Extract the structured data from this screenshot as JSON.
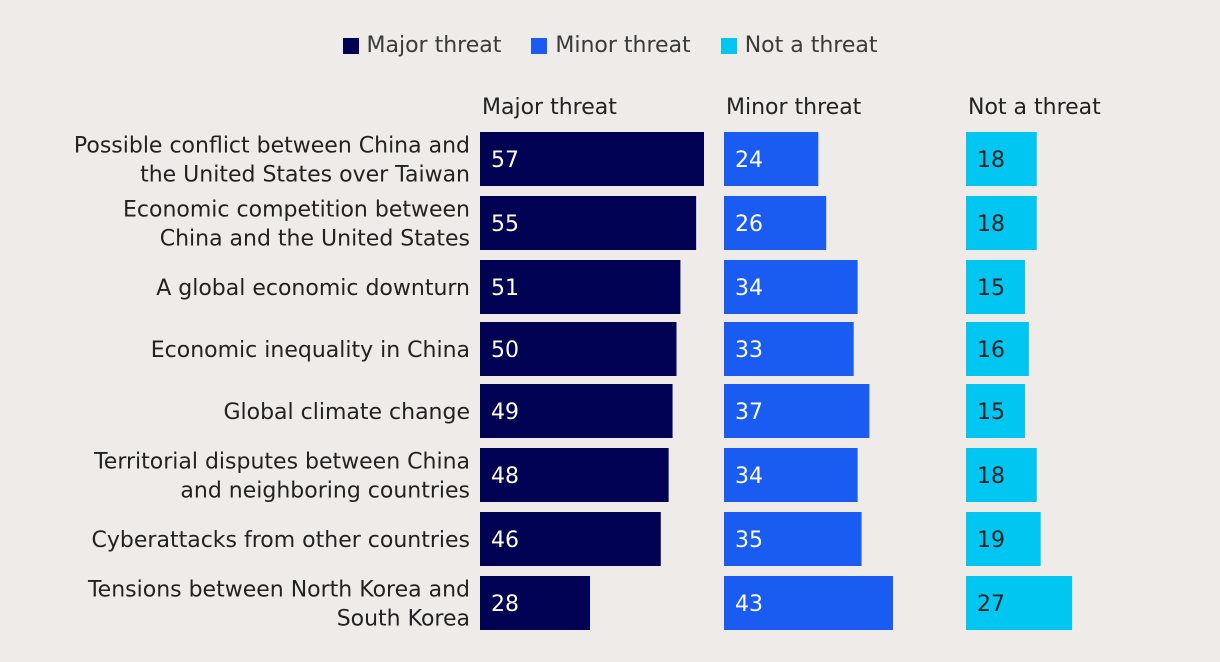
{
  "legend": [
    {
      "label": "Major threat",
      "color": "#020255"
    },
    {
      "label": "Minor threat",
      "color": "#1a5cf2"
    },
    {
      "label": "Not a threat",
      "color": "#00c6f1"
    }
  ],
  "chart_data": {
    "type": "bar",
    "orientation": "horizontal",
    "layout": "small-multiples",
    "categories": [
      [
        "Possible conflict between China and",
        "the United States over Taiwan"
      ],
      [
        "Economic competition between",
        "China and the United States"
      ],
      [
        "A global economic downturn"
      ],
      [
        "Economic inequality in China"
      ],
      [
        "Global climate change"
      ],
      [
        "Territorial disputes between China",
        "and neighboring countries"
      ],
      [
        "Cyberattacks from other countries"
      ],
      [
        "Tensions between North Korea and",
        "South Korea"
      ]
    ],
    "series": [
      {
        "name": "Major threat",
        "color": "#020255",
        "text_color": "#ffffff",
        "values": [
          57,
          55,
          51,
          50,
          49,
          48,
          46,
          28
        ]
      },
      {
        "name": "Minor threat",
        "color": "#1a5cf2",
        "text_color": "#ffffff",
        "values": [
          24,
          26,
          34,
          33,
          37,
          34,
          35,
          43
        ]
      },
      {
        "name": "Not a threat",
        "color": "#00c6f1",
        "text_color": "#222222",
        "values": [
          18,
          18,
          15,
          16,
          15,
          18,
          19,
          27
        ]
      }
    ],
    "xlim": [
      0,
      57
    ]
  }
}
